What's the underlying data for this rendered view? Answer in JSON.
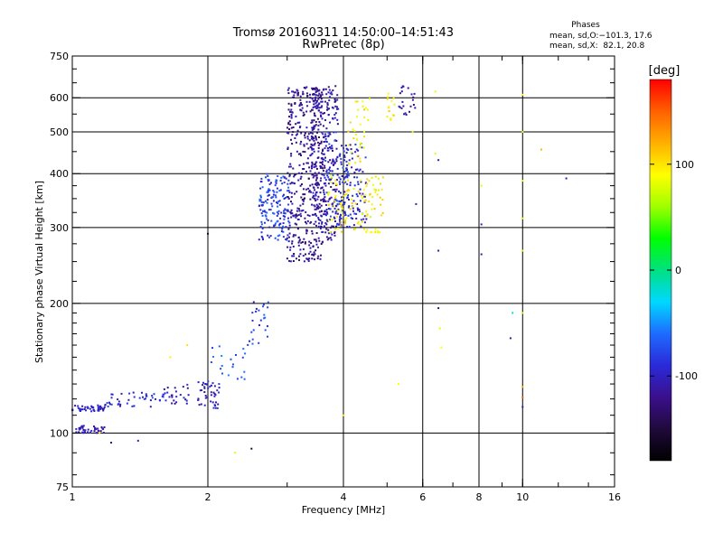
{
  "header": {
    "title_line1": "Tromsø 20160311 14:50:00–14:51:43",
    "title_line2": "RwPretec (8p)"
  },
  "phases_box": {
    "heading": "Phases",
    "line_o": "mean, sd,O:−101.3, 17.6",
    "line_x": "mean, sd,X:  82.1, 20.8"
  },
  "colorbar": {
    "label": "[deg]",
    "ticks": [
      "100",
      "0",
      "-100"
    ],
    "tick_values": [
      100,
      0,
      -100
    ],
    "range": [
      -180,
      180
    ],
    "stops": [
      "#000000",
      "#1f0a3a",
      "#3b0f8c",
      "#2a2ad8",
      "#1e6bff",
      "#00d8ff",
      "#00e080",
      "#00ff00",
      "#a0ff00",
      "#ffff00",
      "#ffb000",
      "#ff6000",
      "#ff0000"
    ]
  },
  "axes": {
    "xlabel": "Frequency [MHz]",
    "ylabel": "Stationary phase Virtual Height [km]",
    "xticks": [
      "1",
      "2",
      "4",
      "6",
      "8",
      "10",
      "16"
    ],
    "xtick_values": [
      1,
      2,
      4,
      6,
      8,
      10,
      16
    ],
    "yticks": [
      "750",
      "600",
      "500",
      "400",
      "300",
      "200",
      "100",
      "75"
    ],
    "ytick_values": [
      750,
      600,
      500,
      400,
      300,
      200,
      100,
      75
    ],
    "xlim": [
      1,
      16
    ],
    "ylim": [
      75,
      750
    ],
    "xscale": "log",
    "yscale": "log",
    "grid": true
  },
  "chart_data": {
    "type": "scatter",
    "title": "Tromsø 20160311 14:50:00–14:51:43",
    "subtitle": "RwPretec (8p)",
    "xlabel": "Frequency [MHz]",
    "ylabel": "Stationary phase Virtual Height [km]",
    "xlim": [
      1,
      16
    ],
    "ylim": [
      75,
      750
    ],
    "xscale": "log",
    "yscale": "log",
    "color_scale": "phase [deg]",
    "clusters": [
      {
        "x": [
          1.0,
          1.18
        ],
        "y": [
          112,
          116
        ],
        "phase": -100,
        "n": 45
      },
      {
        "x": [
          1.0,
          1.18
        ],
        "y": [
          100,
          104
        ],
        "phase": -110,
        "n": 40
      },
      {
        "x": [
          1.18,
          1.6
        ],
        "y": [
          115,
          125
        ],
        "phase": -90,
        "n": 45
      },
      {
        "x": [
          1.6,
          1.82
        ],
        "y": [
          116,
          130
        ],
        "phase": -105,
        "n": 25
      },
      {
        "x": [
          1.9,
          2.12
        ],
        "y": [
          114,
          132
        ],
        "phase": -100,
        "n": 45
      },
      {
        "x": [
          2.0,
          2.45
        ],
        "y": [
          132,
          160
        ],
        "phase": -70,
        "n": 20
      },
      {
        "x": [
          2.45,
          2.75
        ],
        "y": [
          160,
          210
        ],
        "phase": -80,
        "n": 25
      },
      {
        "x": [
          2.6,
          3.05
        ],
        "y": [
          280,
          400
        ],
        "phase": -80,
        "n": 160
      },
      {
        "x": [
          3.0,
          3.6
        ],
        "y": [
          250,
          640
        ],
        "phase": -118,
        "n": 420
      },
      {
        "x": [
          3.4,
          3.9
        ],
        "y": [
          280,
          640
        ],
        "phase": -112,
        "n": 280
      },
      {
        "x": [
          3.6,
          4.1
        ],
        "y": [
          300,
          500
        ],
        "phase": -85,
        "n": 90
      },
      {
        "x": [
          3.9,
          4.5
        ],
        "y": [
          300,
          470
        ],
        "phase": -95,
        "n": 110
      },
      {
        "x": [
          3.7,
          4.9
        ],
        "y": [
          290,
          400
        ],
        "phase": 95,
        "n": 110
      },
      {
        "x": [
          4.1,
          4.6
        ],
        "y": [
          420,
          600
        ],
        "phase": 95,
        "n": 35
      },
      {
        "x": [
          5.0,
          5.2
        ],
        "y": [
          530,
          620
        ],
        "phase": 95,
        "n": 14
      },
      {
        "x": [
          5.3,
          5.8
        ],
        "y": [
          540,
          640
        ],
        "phase": -110,
        "n": 22
      }
    ],
    "points": [
      {
        "x": 1.22,
        "y": 95,
        "phase": -120
      },
      {
        "x": 1.15,
        "y": 100,
        "phase": 100
      },
      {
        "x": 1.4,
        "y": 96,
        "phase": -100
      },
      {
        "x": 1.65,
        "y": 150,
        "phase": 95
      },
      {
        "x": 1.8,
        "y": 160,
        "phase": 100
      },
      {
        "x": 2.0,
        "y": 290,
        "phase": -150
      },
      {
        "x": 2.3,
        "y": 90,
        "phase": 80
      },
      {
        "x": 2.5,
        "y": 92,
        "phase": -150
      },
      {
        "x": 4.0,
        "y": 110,
        "phase": 95
      },
      {
        "x": 5.3,
        "y": 130,
        "phase": 90
      },
      {
        "x": 5.7,
        "y": 500,
        "phase": 80
      },
      {
        "x": 5.8,
        "y": 340,
        "phase": -100
      },
      {
        "x": 6.4,
        "y": 620,
        "phase": 80
      },
      {
        "x": 6.4,
        "y": 445,
        "phase": 80
      },
      {
        "x": 6.5,
        "y": 430,
        "phase": -110
      },
      {
        "x": 6.5,
        "y": 265,
        "phase": -110
      },
      {
        "x": 6.5,
        "y": 195,
        "phase": -130
      },
      {
        "x": 6.55,
        "y": 175,
        "phase": 80
      },
      {
        "x": 6.6,
        "y": 158,
        "phase": 90
      },
      {
        "x": 8.1,
        "y": 375,
        "phase": 80
      },
      {
        "x": 8.1,
        "y": 305,
        "phase": -100
      },
      {
        "x": 8.1,
        "y": 260,
        "phase": -110
      },
      {
        "x": 9.5,
        "y": 190,
        "phase": -20
      },
      {
        "x": 9.4,
        "y": 166,
        "phase": -110
      },
      {
        "x": 10.0,
        "y": 610,
        "phase": 90
      },
      {
        "x": 10.0,
        "y": 500,
        "phase": 80
      },
      {
        "x": 10.0,
        "y": 385,
        "phase": 80
      },
      {
        "x": 10.0,
        "y": 315,
        "phase": 80
      },
      {
        "x": 10.0,
        "y": 265,
        "phase": 80
      },
      {
        "x": 10.0,
        "y": 128,
        "phase": 120
      },
      {
        "x": 10.0,
        "y": 121,
        "phase": 150
      },
      {
        "x": 10.0,
        "y": 115,
        "phase": -110
      },
      {
        "x": 10.0,
        "y": 190,
        "phase": 80
      },
      {
        "x": 11.0,
        "y": 455,
        "phase": 120
      },
      {
        "x": 12.5,
        "y": 390,
        "phase": -110
      }
    ]
  }
}
